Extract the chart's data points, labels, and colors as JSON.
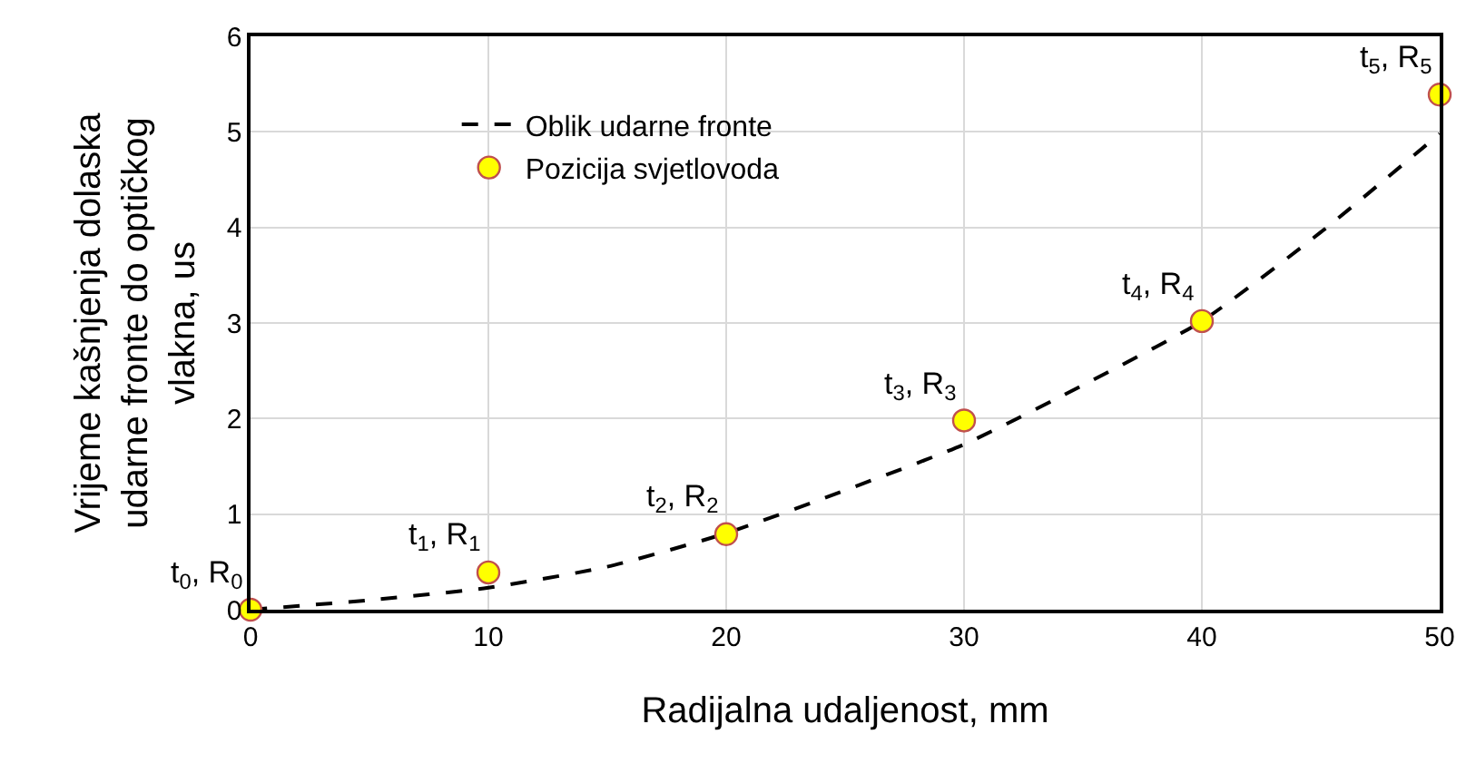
{
  "chart_data": {
    "type": "line",
    "xlabel": "Radijalna udaljenost, mm",
    "ylabel": "Vrijeme kašnjenja dolaska\nudarne fronte do optičkog\nvlakna, us",
    "xlim": [
      0,
      50
    ],
    "xticks": [
      0,
      10,
      20,
      30,
      40,
      50
    ],
    "ylim": [
      0,
      6
    ],
    "yticks": [
      0,
      1,
      2,
      3,
      4,
      5,
      6
    ],
    "grid": true,
    "legend": "top left",
    "series": [
      {
        "name": "Oblik udarne fronte",
        "color": "#000000",
        "line_style": "dashed",
        "marker": "none",
        "x": [
          0,
          5,
          10,
          15,
          20,
          25,
          30,
          35,
          40,
          45,
          50
        ],
        "values": [
          0,
          0.1,
          0.23,
          0.45,
          0.8,
          1.25,
          1.73,
          2.35,
          3.02,
          3.95,
          4.98
        ]
      },
      {
        "name": "Pozicija svjetlovoda",
        "type": "scatter",
        "color": "#ffff00",
        "marker": "circle",
        "x": [
          0,
          10,
          20,
          30,
          40,
          50
        ],
        "values": [
          0,
          0.39,
          0.79,
          1.98,
          3.02,
          5.39
        ]
      }
    ],
    "annotations": [
      {
        "text": "t$_{0}$, R$_{0}$",
        "x": 0,
        "y": 0
      },
      {
        "text": "t$_{1}$, R$_{1}$",
        "x": 10,
        "y": 0.39
      },
      {
        "text": "t$_{2}$, R$_{2}$",
        "x": 20,
        "y": 0.79
      },
      {
        "text": "t$_{3}$, R$_{3}$",
        "x": 30,
        "y": 1.98
      },
      {
        "text": "t$_{4}$, R$_{4}$",
        "x": 40,
        "y": 3.02
      },
      {
        "text": "t$_{5}$, R$_{5}$",
        "x": 50,
        "y": 5.39
      }
    ]
  }
}
